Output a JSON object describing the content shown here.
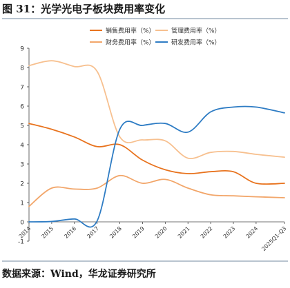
{
  "header": {
    "title": "图 31：光学光电子板块费用率变化"
  },
  "footer": {
    "source": "数据来源：Wind，华龙证券研究所"
  },
  "chart_data": {
    "type": "line",
    "title": "",
    "xlabel": "",
    "ylabel": "",
    "ylim": [
      -1,
      9
    ],
    "y_ticks": [
      -1,
      0,
      1,
      2,
      3,
      4,
      5,
      6,
      7,
      8,
      9
    ],
    "grid": false,
    "legend_position": "top",
    "x": [
      2014,
      2015,
      2016,
      2017,
      2018,
      2019,
      2020,
      2021,
      2022,
      2023,
      2024,
      2025.25
    ],
    "x_tick_labels": [
      "2014",
      "2015",
      "2016",
      "2017",
      "2018",
      "2019",
      "2020",
      "2021",
      "2022",
      "2023",
      "2024",
      "2025Q1-Q3"
    ],
    "series": [
      {
        "name": "销售费用率（%）",
        "color": "#e8731e",
        "values": [
          5.1,
          4.8,
          4.4,
          3.9,
          4.0,
          3.2,
          2.7,
          2.5,
          2.6,
          2.6,
          2.0,
          2.0
        ]
      },
      {
        "name": "管理费用率（%）",
        "color": "#f7c08f",
        "values": [
          8.1,
          8.35,
          8.05,
          7.8,
          4.4,
          4.25,
          4.2,
          3.3,
          3.6,
          3.65,
          3.5,
          3.35
        ]
      },
      {
        "name": "财务费用率（%）",
        "color": "#f2a66a",
        "values": [
          0.8,
          1.75,
          1.7,
          1.75,
          2.4,
          2.0,
          2.2,
          1.75,
          1.4,
          1.35,
          1.3,
          1.25
        ]
      },
      {
        "name": "研发费用率（%）",
        "color": "#2e7cc4",
        "values": [
          0.0,
          0.02,
          0.15,
          0.05,
          4.8,
          5.0,
          5.1,
          4.65,
          5.7,
          5.95,
          5.95,
          5.65
        ]
      }
    ]
  }
}
